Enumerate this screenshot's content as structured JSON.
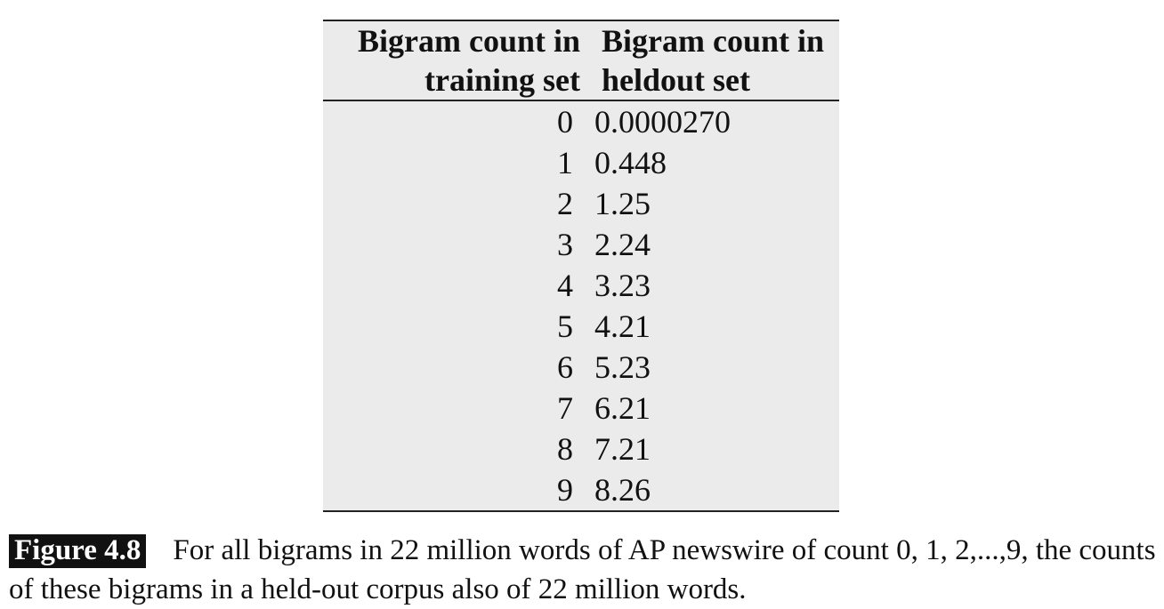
{
  "table": {
    "headers": {
      "col_a_line1": "Bigram count in",
      "col_a_line2": "training set",
      "col_b_line1": "Bigram count in",
      "col_b_line2": "heldout set"
    },
    "rows": [
      {
        "train": "0",
        "heldout": "0.0000270"
      },
      {
        "train": "1",
        "heldout": "0.448"
      },
      {
        "train": "2",
        "heldout": "1.25"
      },
      {
        "train": "3",
        "heldout": "2.24"
      },
      {
        "train": "4",
        "heldout": "3.23"
      },
      {
        "train": "5",
        "heldout": "4.21"
      },
      {
        "train": "6",
        "heldout": "5.23"
      },
      {
        "train": "7",
        "heldout": "6.21"
      },
      {
        "train": "8",
        "heldout": "7.21"
      },
      {
        "train": "9",
        "heldout": "8.26"
      }
    ]
  },
  "caption": {
    "label": "Figure 4.8",
    "text": "For all bigrams in 22 million words of AP newswire of count 0, 1, 2,...,9, the counts of these bigrams in a held-out corpus also of 22 million words."
  }
}
